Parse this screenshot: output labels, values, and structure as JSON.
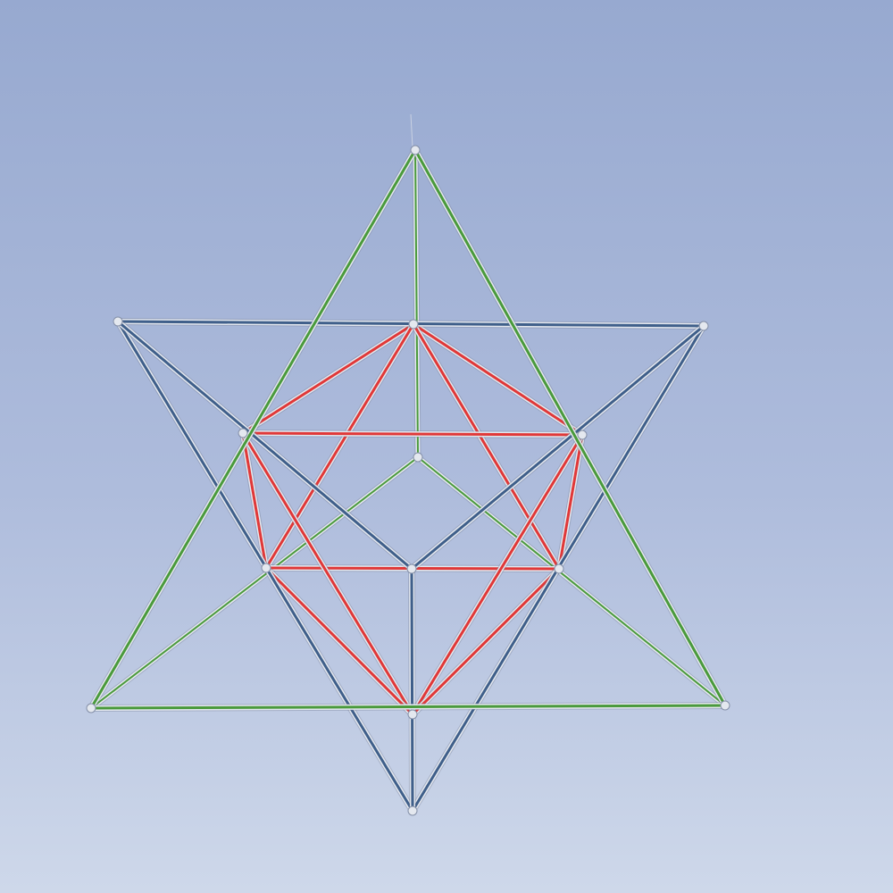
{
  "scene": {
    "subject": "star-tetrahedron-sculpture",
    "colors": {
      "sky_top": "#97a9d0",
      "sky_mid": "#aebcdc",
      "sky_bottom": "#ced8ea",
      "green_tetrahedron": "#4a9a3c",
      "blue_tetrahedron": "#3f5f8a",
      "red_octahedron": "#e03838",
      "chrome": "#e4e8ef"
    }
  }
}
